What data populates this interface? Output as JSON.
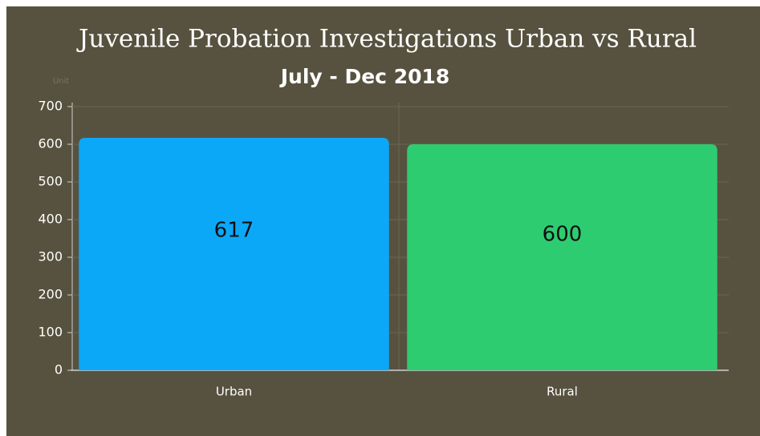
{
  "chart_data": {
    "type": "bar",
    "title": "Juvenile Probation Investigations Urban vs Rural",
    "subtitle": "July - Dec 2018",
    "y_label": "Unit",
    "categories": [
      "Urban",
      "Rural"
    ],
    "values": [
      617,
      600
    ],
    "colors": [
      "#0ca8f8",
      "#2ecc71"
    ],
    "ylim": [
      0,
      700
    ],
    "yticks": [
      0,
      100,
      200,
      300,
      400,
      500,
      600,
      700
    ],
    "grid": true
  }
}
